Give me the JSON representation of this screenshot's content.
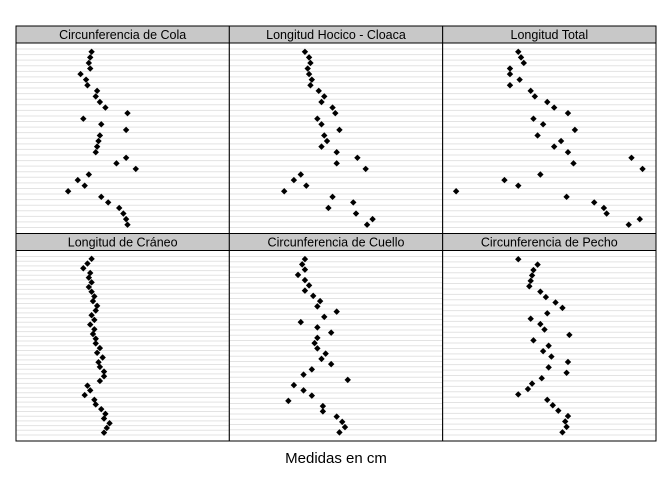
{
  "chart_data": {
    "type": "scatter",
    "xlabel": "Medidas en cm",
    "grid": true,
    "layout": "2x3 small multiples, shared y (observation order), hidden axis ticks",
    "panels": [
      {
        "title": "Circunferencia de Cola",
        "points": [
          {
            "x": 0.55,
            "y": 1
          },
          {
            "x": 0.54,
            "y": 2
          },
          {
            "x": 0.53,
            "y": 3
          },
          {
            "x": 0.54,
            "y": 4
          },
          {
            "x": 0.47,
            "y": 5
          },
          {
            "x": 0.51,
            "y": 6
          },
          {
            "x": 0.52,
            "y": 7
          },
          {
            "x": 0.59,
            "y": 8
          },
          {
            "x": 0.58,
            "y": 9
          },
          {
            "x": 0.61,
            "y": 10
          },
          {
            "x": 0.65,
            "y": 11
          },
          {
            "x": 0.81,
            "y": 12
          },
          {
            "x": 0.49,
            "y": 13
          },
          {
            "x": 0.62,
            "y": 14
          },
          {
            "x": 0.8,
            "y": 15
          },
          {
            "x": 0.61,
            "y": 16
          },
          {
            "x": 0.6,
            "y": 17
          },
          {
            "x": 0.59,
            "y": 18
          },
          {
            "x": 0.58,
            "y": 19
          },
          {
            "x": 0.8,
            "y": 20
          },
          {
            "x": 0.73,
            "y": 21
          },
          {
            "x": 0.87,
            "y": 22
          },
          {
            "x": 0.53,
            "y": 23
          },
          {
            "x": 0.45,
            "y": 24
          },
          {
            "x": 0.5,
            "y": 25
          },
          {
            "x": 0.38,
            "y": 26
          },
          {
            "x": 0.62,
            "y": 27
          },
          {
            "x": 0.67,
            "y": 28
          },
          {
            "x": 0.75,
            "y": 29
          },
          {
            "x": 0.78,
            "y": 30
          },
          {
            "x": 0.8,
            "y": 31
          },
          {
            "x": 0.81,
            "y": 32
          }
        ]
      },
      {
        "title": "Longitud Hocico - Cloaca",
        "points": [
          {
            "x": 0.55,
            "y": 1
          },
          {
            "x": 0.58,
            "y": 2
          },
          {
            "x": 0.59,
            "y": 3
          },
          {
            "x": 0.57,
            "y": 4
          },
          {
            "x": 0.58,
            "y": 5
          },
          {
            "x": 0.6,
            "y": 6
          },
          {
            "x": 0.59,
            "y": 7
          },
          {
            "x": 0.65,
            "y": 8
          },
          {
            "x": 0.69,
            "y": 9
          },
          {
            "x": 0.67,
            "y": 10
          },
          {
            "x": 0.75,
            "y": 11
          },
          {
            "x": 0.77,
            "y": 12
          },
          {
            "x": 0.64,
            "y": 13
          },
          {
            "x": 0.67,
            "y": 14
          },
          {
            "x": 0.8,
            "y": 15
          },
          {
            "x": 0.69,
            "y": 16
          },
          {
            "x": 0.71,
            "y": 17
          },
          {
            "x": 0.67,
            "y": 18
          },
          {
            "x": 0.78,
            "y": 19
          },
          {
            "x": 0.93,
            "y": 20
          },
          {
            "x": 0.78,
            "y": 21
          },
          {
            "x": 0.99,
            "y": 22
          },
          {
            "x": 0.52,
            "y": 23
          },
          {
            "x": 0.47,
            "y": 24
          },
          {
            "x": 0.56,
            "y": 25
          },
          {
            "x": 0.4,
            "y": 26
          },
          {
            "x": 0.75,
            "y": 27
          },
          {
            "x": 0.9,
            "y": 28
          },
          {
            "x": 0.72,
            "y": 29
          },
          {
            "x": 0.92,
            "y": 30
          },
          {
            "x": 1.04,
            "y": 31
          },
          {
            "x": 1.0,
            "y": 32
          }
        ]
      },
      {
        "title": "Longitud Total",
        "points": [
          {
            "x": 0.55,
            "y": 1
          },
          {
            "x": 0.57,
            "y": 2
          },
          {
            "x": 0.59,
            "y": 3
          },
          {
            "x": 0.49,
            "y": 4
          },
          {
            "x": 0.49,
            "y": 5
          },
          {
            "x": 0.56,
            "y": 6
          },
          {
            "x": 0.49,
            "y": 7
          },
          {
            "x": 0.64,
            "y": 8
          },
          {
            "x": 0.67,
            "y": 9
          },
          {
            "x": 0.76,
            "y": 10
          },
          {
            "x": 0.81,
            "y": 11
          },
          {
            "x": 0.91,
            "y": 12
          },
          {
            "x": 0.66,
            "y": 13
          },
          {
            "x": 0.73,
            "y": 14
          },
          {
            "x": 0.96,
            "y": 15
          },
          {
            "x": 0.69,
            "y": 16
          },
          {
            "x": 0.86,
            "y": 17
          },
          {
            "x": 0.81,
            "y": 18
          },
          {
            "x": 0.91,
            "y": 19
          },
          {
            "x": 1.37,
            "y": 20
          },
          {
            "x": 0.95,
            "y": 21
          },
          {
            "x": 1.45,
            "y": 22
          },
          {
            "x": 0.71,
            "y": 23
          },
          {
            "x": 0.45,
            "y": 24
          },
          {
            "x": 0.55,
            "y": 25
          },
          {
            "x": 0.1,
            "y": 26
          },
          {
            "x": 0.9,
            "y": 27
          },
          {
            "x": 1.1,
            "y": 28
          },
          {
            "x": 1.17,
            "y": 29
          },
          {
            "x": 1.19,
            "y": 30
          },
          {
            "x": 1.43,
            "y": 31
          },
          {
            "x": 1.35,
            "y": 32
          }
        ]
      },
      {
        "title": "Longitud de Cráneo",
        "points": [
          {
            "x": 0.55,
            "y": 1
          },
          {
            "x": 0.52,
            "y": 2
          },
          {
            "x": 0.49,
            "y": 3
          },
          {
            "x": 0.54,
            "y": 4
          },
          {
            "x": 0.53,
            "y": 5
          },
          {
            "x": 0.55,
            "y": 6
          },
          {
            "x": 0.53,
            "y": 7
          },
          {
            "x": 0.55,
            "y": 8
          },
          {
            "x": 0.57,
            "y": 9
          },
          {
            "x": 0.56,
            "y": 10
          },
          {
            "x": 0.59,
            "y": 11
          },
          {
            "x": 0.58,
            "y": 12
          },
          {
            "x": 0.55,
            "y": 13
          },
          {
            "x": 0.57,
            "y": 14
          },
          {
            "x": 0.54,
            "y": 15
          },
          {
            "x": 0.57,
            "y": 16
          },
          {
            "x": 0.56,
            "y": 17
          },
          {
            "x": 0.58,
            "y": 18
          },
          {
            "x": 0.58,
            "y": 19
          },
          {
            "x": 0.61,
            "y": 20
          },
          {
            "x": 0.59,
            "y": 21
          },
          {
            "x": 0.63,
            "y": 22
          },
          {
            "x": 0.6,
            "y": 23
          },
          {
            "x": 0.61,
            "y": 24
          },
          {
            "x": 0.64,
            "y": 25
          },
          {
            "x": 0.64,
            "y": 26
          },
          {
            "x": 0.61,
            "y": 27
          },
          {
            "x": 0.52,
            "y": 28
          },
          {
            "x": 0.54,
            "y": 29
          },
          {
            "x": 0.5,
            "y": 30
          },
          {
            "x": 0.57,
            "y": 31
          },
          {
            "x": 0.58,
            "y": 32
          },
          {
            "x": 0.62,
            "y": 33
          },
          {
            "x": 0.65,
            "y": 34
          },
          {
            "x": 0.64,
            "y": 35
          },
          {
            "x": 0.68,
            "y": 36
          },
          {
            "x": 0.66,
            "y": 37
          },
          {
            "x": 0.64,
            "y": 38
          }
        ]
      },
      {
        "title": "Circunferencia de Cuello",
        "points": [
          {
            "x": 0.55,
            "y": 1
          },
          {
            "x": 0.53,
            "y": 2
          },
          {
            "x": 0.55,
            "y": 3
          },
          {
            "x": 0.5,
            "y": 4
          },
          {
            "x": 0.55,
            "y": 5
          },
          {
            "x": 0.58,
            "y": 6
          },
          {
            "x": 0.55,
            "y": 7
          },
          {
            "x": 0.61,
            "y": 8
          },
          {
            "x": 0.66,
            "y": 9
          },
          {
            "x": 0.64,
            "y": 10
          },
          {
            "x": 0.78,
            "y": 11
          },
          {
            "x": 0.69,
            "y": 12
          },
          {
            "x": 0.52,
            "y": 13
          },
          {
            "x": 0.64,
            "y": 14
          },
          {
            "x": 0.74,
            "y": 15
          },
          {
            "x": 0.64,
            "y": 16
          },
          {
            "x": 0.62,
            "y": 17
          },
          {
            "x": 0.64,
            "y": 18
          },
          {
            "x": 0.7,
            "y": 19
          },
          {
            "x": 0.67,
            "y": 20
          },
          {
            "x": 0.74,
            "y": 21
          },
          {
            "x": 0.6,
            "y": 22
          },
          {
            "x": 0.54,
            "y": 23
          },
          {
            "x": 0.86,
            "y": 24
          },
          {
            "x": 0.47,
            "y": 25
          },
          {
            "x": 0.54,
            "y": 26
          },
          {
            "x": 0.6,
            "y": 27
          },
          {
            "x": 0.43,
            "y": 28
          },
          {
            "x": 0.68,
            "y": 29
          },
          {
            "x": 0.68,
            "y": 30
          },
          {
            "x": 0.78,
            "y": 31
          },
          {
            "x": 0.82,
            "y": 32
          },
          {
            "x": 0.84,
            "y": 33
          },
          {
            "x": 0.8,
            "y": 34
          }
        ]
      },
      {
        "title": "Circunferencia de Pecho",
        "points": [
          {
            "x": 0.55,
            "y": 1
          },
          {
            "x": 0.69,
            "y": 2
          },
          {
            "x": 0.66,
            "y": 3
          },
          {
            "x": 0.65,
            "y": 4
          },
          {
            "x": 0.64,
            "y": 5
          },
          {
            "x": 0.63,
            "y": 6
          },
          {
            "x": 0.71,
            "y": 7
          },
          {
            "x": 0.75,
            "y": 8
          },
          {
            "x": 0.82,
            "y": 9
          },
          {
            "x": 0.87,
            "y": 10
          },
          {
            "x": 0.76,
            "y": 11
          },
          {
            "x": 0.64,
            "y": 12
          },
          {
            "x": 0.71,
            "y": 13
          },
          {
            "x": 0.74,
            "y": 14
          },
          {
            "x": 0.92,
            "y": 15
          },
          {
            "x": 0.66,
            "y": 16
          },
          {
            "x": 0.77,
            "y": 17
          },
          {
            "x": 0.73,
            "y": 18
          },
          {
            "x": 0.79,
            "y": 19
          },
          {
            "x": 0.91,
            "y": 20
          },
          {
            "x": 0.77,
            "y": 21
          },
          {
            "x": 0.9,
            "y": 22
          },
          {
            "x": 0.72,
            "y": 23
          },
          {
            "x": 0.65,
            "y": 24
          },
          {
            "x": 0.62,
            "y": 25
          },
          {
            "x": 0.55,
            "y": 26
          },
          {
            "x": 0.76,
            "y": 27
          },
          {
            "x": 0.8,
            "y": 28
          },
          {
            "x": 0.84,
            "y": 29
          },
          {
            "x": 0.91,
            "y": 30
          },
          {
            "x": 0.89,
            "y": 31
          },
          {
            "x": 0.9,
            "y": 32
          },
          {
            "x": 0.87,
            "y": 33
          }
        ]
      }
    ]
  }
}
